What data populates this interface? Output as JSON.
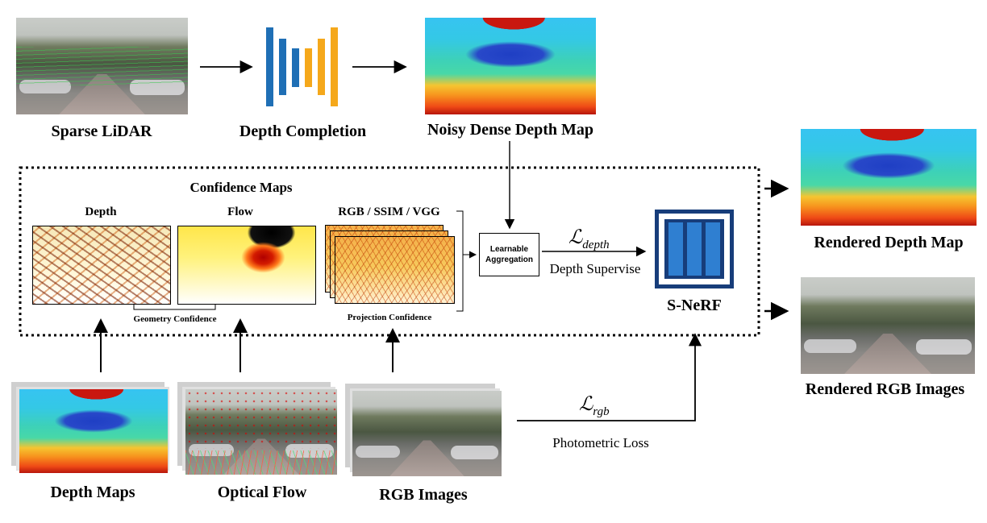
{
  "labels": {
    "sparse_lidar": "Sparse LiDAR",
    "depth_completion": "Depth Completion",
    "noisy_dense": "Noisy Dense Depth Map",
    "confidence_maps": "Confidence Maps",
    "depth": "Depth",
    "flow": "Flow",
    "rgb_ssim_vgg": "RGB / SSIM / VGG",
    "geometry_confidence": "Geometry Confidence",
    "projection_confidence": "Projection Confidence",
    "learnable_line1": "Learnable",
    "learnable_line2": "Aggregation",
    "loss_depth_base": "ℒ",
    "loss_depth_sub": "depth",
    "depth_supervise": "Depth Supervise",
    "snerf": "S-NeRF",
    "loss_rgb_base": "ℒ",
    "loss_rgb_sub": "rgb",
    "photometric_loss": "Photometric Loss",
    "depth_maps": "Depth Maps",
    "optical_flow": "Optical Flow",
    "rgb_images": "RGB Images",
    "rendered_depth": "Rendered Depth Map",
    "rendered_rgb": "Rendered RGB Images"
  },
  "colors": {
    "unet_blue": "#1f6fb5",
    "unet_orange": "#f5a81b",
    "snerf_frame": "#173d7a",
    "snerf_fill": "#2f7fd1"
  }
}
